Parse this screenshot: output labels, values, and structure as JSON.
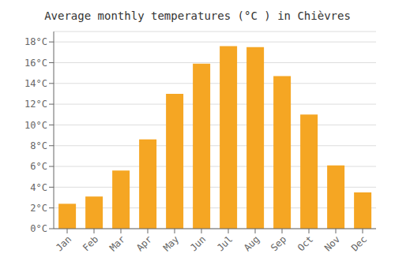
{
  "chart_data": {
    "type": "bar",
    "title": "Average monthly temperatures (°C ) in Chièvres",
    "categories": [
      "Jan",
      "Feb",
      "Mar",
      "Apr",
      "May",
      "Jun",
      "Jul",
      "Aug",
      "Sep",
      "Oct",
      "Nov",
      "Dec"
    ],
    "values": [
      2.4,
      3.1,
      5.6,
      8.6,
      13.0,
      15.9,
      17.6,
      17.5,
      14.7,
      11.0,
      6.1,
      3.5
    ],
    "color": "#F5A623",
    "ylim": [
      0,
      19
    ],
    "yticks": [
      {
        "value": 0,
        "label": "0°C"
      },
      {
        "value": 2,
        "label": "2°C"
      },
      {
        "value": 4,
        "label": "4°C"
      },
      {
        "value": 6,
        "label": "6°C"
      },
      {
        "value": 8,
        "label": "8°C"
      },
      {
        "value": 10,
        "label": "10°C"
      },
      {
        "value": 12,
        "label": "12°C"
      },
      {
        "value": 14,
        "label": "14°C"
      },
      {
        "value": 16,
        "label": "16°C"
      },
      {
        "value": 18,
        "label": "18°C"
      }
    ],
    "grid": true
  }
}
